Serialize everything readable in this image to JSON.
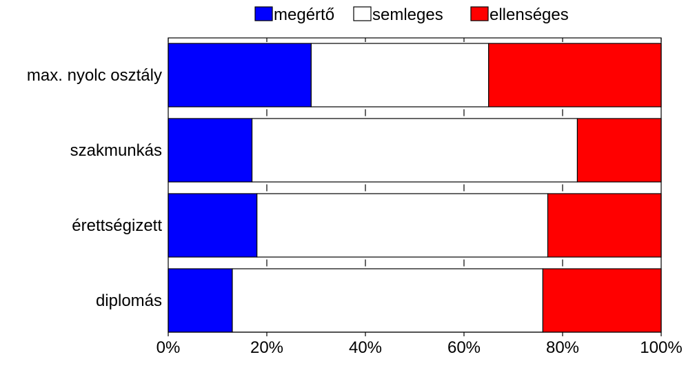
{
  "chart_data": {
    "type": "bar",
    "orientation": "horizontal",
    "stacked": true,
    "percent": true,
    "title": "",
    "xlabel": "",
    "ylabel": "",
    "xlim": [
      0,
      100
    ],
    "x_ticks": [
      0,
      20,
      40,
      60,
      80,
      100
    ],
    "x_tick_labels": [
      "0%",
      "20%",
      "40%",
      "60%",
      "80%",
      "100%"
    ],
    "grid": false,
    "legend_position": "top",
    "categories": [
      "max. nyolc osztály",
      "szakmunkás",
      "érettségizett",
      "diplomás"
    ],
    "series": [
      {
        "name": "megértő",
        "color": "#0000ff",
        "values": [
          29,
          17,
          18,
          13
        ]
      },
      {
        "name": "semleges",
        "color": "#ffffff",
        "values": [
          36,
          66,
          59,
          63
        ]
      },
      {
        "name": "ellenséges",
        "color": "#ff0000",
        "values": [
          35,
          17,
          23,
          24
        ]
      }
    ]
  }
}
